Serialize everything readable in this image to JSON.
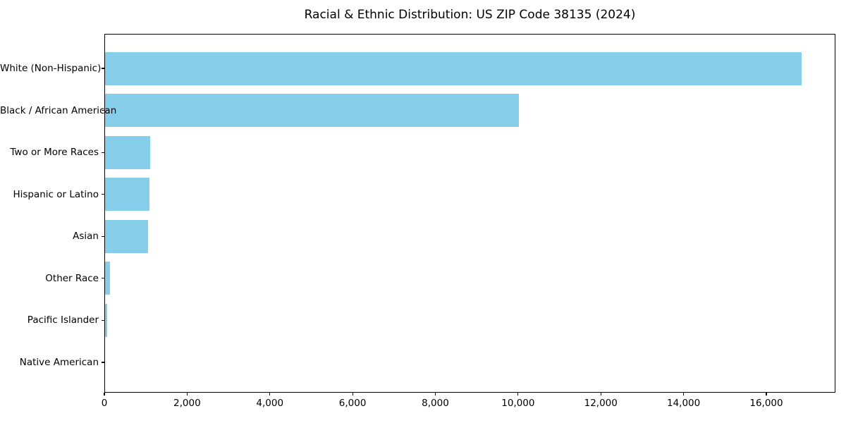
{
  "chart_data": {
    "type": "bar",
    "orientation": "horizontal",
    "title": "Racial & Ethnic Distribution: US ZIP Code 38135 (2024)",
    "categories": [
      "White (Non-Hispanic)",
      "Black / African American",
      "Two or More Races",
      "Hispanic or Latino",
      "Asian",
      "Other Race",
      "Pacific Islander",
      "Native American"
    ],
    "values": [
      16850,
      10025,
      1100,
      1085,
      1060,
      143,
      75,
      0
    ],
    "xlabel": "",
    "ylabel": "",
    "xlim": [
      0,
      17670
    ],
    "xticks": [
      0,
      2000,
      4000,
      6000,
      8000,
      10000,
      12000,
      14000,
      16000
    ],
    "xtick_labels": [
      "0",
      "2,000",
      "4,000",
      "6,000",
      "8,000",
      "10,000",
      "12,000",
      "14,000",
      "16,000"
    ],
    "bar_color": "#87CEEB",
    "axis_color": "#000000",
    "text_color": "#000000",
    "background_color": "#ffffff",
    "grid": false,
    "legend": null
  }
}
